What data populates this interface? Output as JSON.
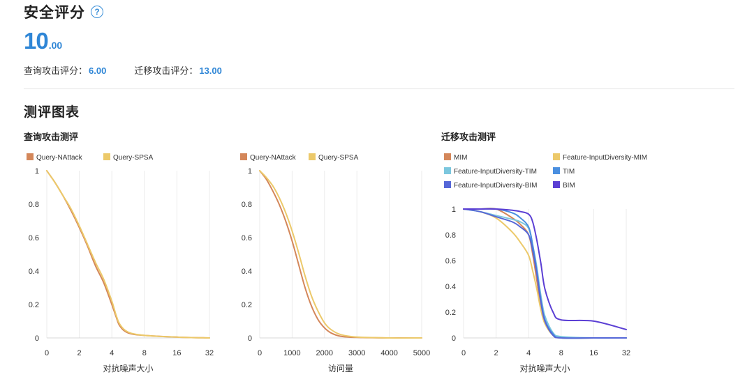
{
  "header": {
    "title": "安全评分",
    "help_icon": "question-circle-icon"
  },
  "score": {
    "integer": "10",
    "decimal": ".00"
  },
  "sub_scores": {
    "query_label": "查询攻击评分：",
    "query_value": "6.00",
    "transfer_label": "迁移攻击评分：",
    "transfer_value": "13.00"
  },
  "section_title": "测评图表",
  "group_titles": {
    "query": "查询攻击测评",
    "transfer": "迁移攻击测评"
  },
  "chart_data": [
    {
      "type": "line",
      "y_ticks": [
        "0",
        "0.2",
        "0.4",
        "0.6",
        "0.8",
        "1"
      ],
      "x_ticks": [
        "0",
        "2",
        "4",
        "8",
        "16",
        "32"
      ],
      "xlabel": "对抗噪声大小",
      "ylim": [
        0,
        1
      ],
      "grid": "vertical",
      "legend_position": "top-left",
      "series": [
        {
          "name": "Query-NAttack",
          "color": "#d4875a",
          "x": [
            0,
            0.5,
            1,
            1.5,
            2,
            2.5,
            3,
            3.5,
            4,
            4.5,
            5,
            6,
            8,
            16,
            32
          ],
          "y": [
            1,
            0.93,
            0.85,
            0.76,
            0.66,
            0.55,
            0.43,
            0.33,
            0.2,
            0.13,
            0.07,
            0.03,
            0.015,
            0.005,
            0.0
          ]
        },
        {
          "name": "Query-SPSA",
          "color": "#ecc96a",
          "x": [
            0,
            0.5,
            1,
            1.5,
            2,
            2.5,
            3,
            3.5,
            4,
            4.5,
            5,
            6,
            8,
            16,
            32
          ],
          "y": [
            1,
            0.93,
            0.85,
            0.77,
            0.67,
            0.56,
            0.45,
            0.35,
            0.22,
            0.14,
            0.08,
            0.035,
            0.015,
            0.005,
            0.0
          ]
        }
      ]
    },
    {
      "type": "line",
      "y_ticks": [
        "0",
        "0.2",
        "0.4",
        "0.6",
        "0.8",
        "1"
      ],
      "x_ticks": [
        "0",
        "1000",
        "2000",
        "3000",
        "4000",
        "5000"
      ],
      "xlabel": "访问量",
      "ylim": [
        0,
        1
      ],
      "grid": "vertical",
      "legend_position": "top-left",
      "series": [
        {
          "name": "Query-NAttack",
          "color": "#d4875a",
          "x": [
            0,
            200,
            400,
            600,
            800,
            1000,
            1200,
            1400,
            1600,
            1800,
            2000,
            2200,
            2500,
            3000,
            4000,
            5000
          ],
          "y": [
            1,
            0.95,
            0.88,
            0.8,
            0.7,
            0.58,
            0.44,
            0.3,
            0.19,
            0.11,
            0.06,
            0.03,
            0.01,
            0.003,
            0,
            0
          ]
        },
        {
          "name": "Query-SPSA",
          "color": "#ecc96a",
          "x": [
            0,
            200,
            400,
            600,
            800,
            1000,
            1200,
            1400,
            1600,
            1800,
            2000,
            2200,
            2500,
            3000,
            4000,
            5000
          ],
          "y": [
            1,
            0.96,
            0.91,
            0.84,
            0.75,
            0.64,
            0.51,
            0.37,
            0.25,
            0.16,
            0.09,
            0.05,
            0.02,
            0.005,
            0,
            0
          ]
        }
      ]
    },
    {
      "type": "line",
      "y_ticks": [
        "0",
        "0.2",
        "0.4",
        "0.6",
        "0.8",
        "1"
      ],
      "x_ticks": [
        "0",
        "2",
        "4",
        "8",
        "16",
        "32"
      ],
      "xlabel": "对抗噪声大小",
      "ylim": [
        0,
        1
      ],
      "grid": "vertical",
      "legend_position": "top-left",
      "series": [
        {
          "name": "MIM",
          "color": "#d4875a",
          "x": [
            0,
            1,
            2,
            3,
            3.5,
            4,
            4.5,
            5,
            5.5,
            6,
            7,
            8,
            16,
            32
          ],
          "y": [
            1,
            1,
            1,
            0.93,
            0.88,
            0.8,
            0.65,
            0.45,
            0.25,
            0.12,
            0.03,
            0,
            0,
            0
          ]
        },
        {
          "name": "Feature-InputDiversity-MIM",
          "color": "#ecc96a",
          "x": [
            0,
            1,
            2,
            3,
            3.5,
            4,
            4.5,
            5,
            5.5,
            6,
            7,
            8,
            16,
            32
          ],
          "y": [
            1,
            0.98,
            0.93,
            0.82,
            0.74,
            0.64,
            0.52,
            0.38,
            0.22,
            0.11,
            0.02,
            0,
            0,
            0
          ]
        },
        {
          "name": "Feature-InputDiversity-TIM",
          "color": "#7cc7de",
          "x": [
            0,
            1,
            2,
            3,
            3.5,
            4,
            4.5,
            5,
            5.5,
            6,
            7,
            8,
            16,
            32
          ],
          "y": [
            1,
            0.98,
            0.95,
            0.92,
            0.9,
            0.85,
            0.72,
            0.55,
            0.33,
            0.17,
            0.04,
            0.01,
            0,
            0
          ]
        },
        {
          "name": "TIM",
          "color": "#4a8fe0",
          "x": [
            0,
            1,
            2,
            3,
            3.5,
            4,
            4.5,
            5,
            5.5,
            6,
            7,
            8,
            16,
            32
          ],
          "y": [
            1,
            1,
            1,
            0.97,
            0.93,
            0.86,
            0.72,
            0.52,
            0.3,
            0.14,
            0.03,
            0,
            0,
            0
          ]
        },
        {
          "name": "Feature-InputDiversity-BIM",
          "color": "#5567d8",
          "x": [
            0,
            1,
            2,
            3,
            3.5,
            4,
            4.5,
            5,
            5.5,
            6,
            7,
            8,
            16,
            32
          ],
          "y": [
            1,
            0.98,
            0.94,
            0.9,
            0.86,
            0.8,
            0.68,
            0.5,
            0.28,
            0.13,
            0.02,
            0,
            0,
            0
          ]
        },
        {
          "name": "BIM",
          "color": "#5b3fd4",
          "x": [
            0,
            1,
            2,
            3,
            3.5,
            4,
            4.5,
            5,
            5.5,
            6,
            7,
            8,
            16,
            32
          ],
          "y": [
            1,
            1,
            1,
            0.99,
            0.98,
            0.96,
            0.9,
            0.76,
            0.58,
            0.38,
            0.2,
            0.14,
            0.13,
            0.065
          ]
        }
      ]
    }
  ]
}
